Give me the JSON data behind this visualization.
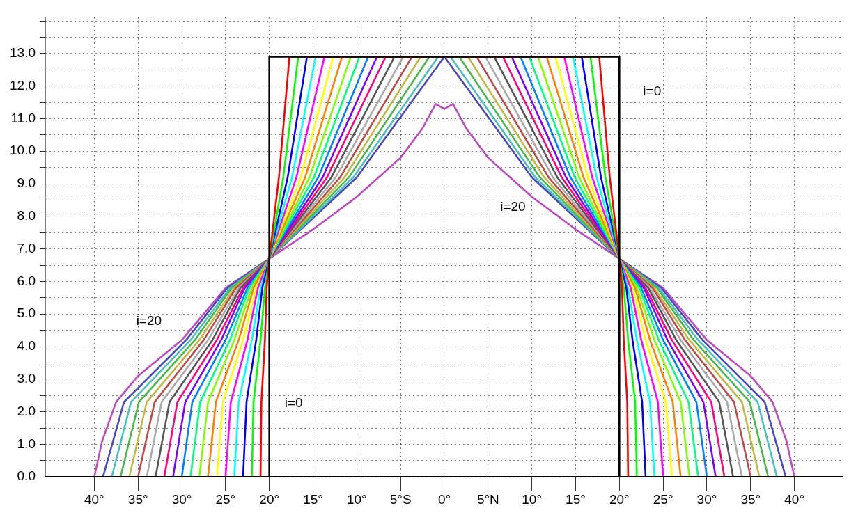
{
  "chart_data": {
    "type": "line",
    "xlim": [
      -45.6,
      45.6
    ],
    "ylim": [
      0,
      14.1
    ],
    "xticks": [
      {
        "value": -40,
        "label": "40°"
      },
      {
        "value": -35,
        "label": "35°"
      },
      {
        "value": -30,
        "label": "30°"
      },
      {
        "value": -25,
        "label": "25°"
      },
      {
        "value": -20,
        "label": "20°"
      },
      {
        "value": -15,
        "label": "15°"
      },
      {
        "value": -10,
        "label": "10°"
      },
      {
        "value": -5,
        "label": "5°S"
      },
      {
        "value": 0,
        "label": "0°"
      },
      {
        "value": 5,
        "label": "5°N"
      },
      {
        "value": 10,
        "label": "10°"
      },
      {
        "value": 15,
        "label": "15°"
      },
      {
        "value": 20,
        "label": "20°"
      },
      {
        "value": 25,
        "label": "25°"
      },
      {
        "value": 30,
        "label": "30°"
      },
      {
        "value": 35,
        "label": "35°"
      },
      {
        "value": 40,
        "label": "40°"
      }
    ],
    "yticks": [
      {
        "value": 0,
        "label": "0.0"
      },
      {
        "value": 0.5,
        "label": null
      },
      {
        "value": 1,
        "label": "1.0"
      },
      {
        "value": 1.5,
        "label": null
      },
      {
        "value": 2,
        "label": "2.0"
      },
      {
        "value": 2.5,
        "label": null
      },
      {
        "value": 3,
        "label": "3.0"
      },
      {
        "value": 3.5,
        "label": null
      },
      {
        "value": 4,
        "label": "4.0"
      },
      {
        "value": 4.5,
        "label": null
      },
      {
        "value": 5,
        "label": "5.0"
      },
      {
        "value": 5.5,
        "label": null
      },
      {
        "value": 6,
        "label": "6.0"
      },
      {
        "value": 6.5,
        "label": null
      },
      {
        "value": 7,
        "label": "7.0"
      },
      {
        "value": 7.5,
        "label": null
      },
      {
        "value": 8,
        "label": "8.0"
      },
      {
        "value": 8.5,
        "label": null
      },
      {
        "value": 9,
        "label": "9.0"
      },
      {
        "value": 9.5,
        "label": null
      },
      {
        "value": 10,
        "label": "10.0"
      },
      {
        "value": 10.5,
        "label": null
      },
      {
        "value": 11,
        "label": "11.0"
      },
      {
        "value": 11.5,
        "label": null
      },
      {
        "value": 12,
        "label": "12.0"
      },
      {
        "value": 12.5,
        "label": null
      },
      {
        "value": 13,
        "label": "13.0"
      },
      {
        "value": 13.5,
        "label": null
      },
      {
        "value": 14,
        "label": null
      }
    ],
    "grid": true,
    "legend": false,
    "marker": "none",
    "line_style": "solid",
    "annotations": [
      "i=0",
      "i=20",
      "i=20",
      "i=0"
    ],
    "series": [
      {
        "color": "#000000",
        "x": [
          -45.6,
          -20,
          -20,
          20,
          20,
          45.6
        ],
        "values": [
          0,
          0,
          12.9,
          12.9,
          0,
          0
        ]
      },
      {
        "color": "#ff0000",
        "x": [
          -45.6,
          -21,
          -20.9,
          -20.5,
          -20.3,
          -20,
          -18.9,
          -17.7,
          17.7,
          18.9,
          20,
          20.3,
          20.5,
          20.9,
          21,
          45.6
        ],
        "values": [
          0,
          0,
          2.3,
          4.2,
          5.8,
          6.7,
          9.2,
          12.9,
          12.9,
          9.2,
          6.7,
          5.8,
          4.2,
          2.3,
          0,
          0
        ]
      },
      {
        "color": "#00ff00",
        "x": [
          -45.6,
          -22,
          -21.8,
          -21,
          -20.5,
          -20,
          -18.4,
          -16.7,
          16.7,
          18.4,
          20,
          20.5,
          21,
          21.8,
          22,
          45.6
        ],
        "values": [
          0,
          0,
          2.3,
          4.2,
          5.8,
          6.7,
          9.2,
          12.9,
          12.9,
          9.2,
          6.7,
          5.8,
          4.2,
          2.3,
          0,
          0
        ]
      },
      {
        "color": "#0000ff",
        "x": [
          -45.6,
          -23,
          -22.6,
          -21.5,
          -20.8,
          -20,
          -17.9,
          -15.7,
          15.7,
          17.9,
          20,
          20.8,
          21.5,
          22.6,
          23,
          45.6
        ],
        "values": [
          0,
          0,
          2.3,
          4.2,
          5.8,
          6.7,
          9.2,
          12.9,
          12.9,
          9.2,
          6.7,
          5.8,
          4.2,
          2.3,
          0,
          0
        ]
      },
      {
        "color": "#00ffff",
        "x": [
          -45.6,
          -24,
          -23.5,
          -22,
          -21,
          -20,
          -17.4,
          -14.7,
          14.7,
          17.4,
          20,
          21,
          22,
          23.5,
          24,
          45.6
        ],
        "values": [
          0,
          0,
          2.3,
          4.2,
          5.8,
          6.7,
          9.2,
          12.9,
          12.9,
          9.2,
          6.7,
          5.8,
          4.2,
          2.3,
          0,
          0
        ]
      },
      {
        "color": "#ff00ff",
        "x": [
          -45.6,
          -25,
          -24.4,
          -22.5,
          -21.3,
          -20,
          -16.9,
          -13.7,
          13.7,
          16.9,
          20,
          21.3,
          22.5,
          24.4,
          25,
          45.6
        ],
        "values": [
          0,
          0,
          2.3,
          4.2,
          5.8,
          6.7,
          9.2,
          12.9,
          12.9,
          9.2,
          6.7,
          5.8,
          4.2,
          2.3,
          0,
          0
        ]
      },
      {
        "color": "#ffff00",
        "x": [
          -45.6,
          -26,
          -25.3,
          -23,
          -21.5,
          -20,
          -16.4,
          -12.7,
          12.7,
          16.4,
          20,
          21.5,
          23,
          25.3,
          26,
          45.6
        ],
        "values": [
          0,
          0,
          2.3,
          4.2,
          5.8,
          6.7,
          9.2,
          12.9,
          12.9,
          9.2,
          6.7,
          5.8,
          4.2,
          2.3,
          0,
          0
        ]
      },
      {
        "color": "#ff8000",
        "x": [
          -45.6,
          -27,
          -26.1,
          -23.5,
          -21.8,
          -20,
          -15.9,
          -11.7,
          11.7,
          15.9,
          20,
          21.8,
          23.5,
          26.1,
          27,
          45.6
        ],
        "values": [
          0,
          0,
          2.3,
          4.2,
          5.8,
          6.7,
          9.2,
          12.9,
          12.9,
          9.2,
          6.7,
          5.8,
          4.2,
          2.3,
          0,
          0
        ]
      },
      {
        "color": "#80ff00",
        "x": [
          -45.6,
          -28,
          -27,
          -24,
          -22,
          -20,
          -15.4,
          -10.7,
          10.7,
          15.4,
          20,
          22,
          24,
          27,
          28,
          45.6
        ],
        "values": [
          0,
          0,
          2.3,
          4.2,
          5.8,
          6.7,
          9.2,
          12.9,
          12.9,
          9.2,
          6.7,
          5.8,
          4.2,
          2.3,
          0,
          0
        ]
      },
      {
        "color": "#00ff80",
        "x": [
          -45.6,
          -29,
          -27.9,
          -24.5,
          -22.3,
          -20,
          -14.9,
          -9.7,
          9.7,
          14.9,
          20,
          22.3,
          24.5,
          27.9,
          29,
          45.6
        ],
        "values": [
          0,
          0,
          2.3,
          4.2,
          5.8,
          6.7,
          9.2,
          12.9,
          12.9,
          9.2,
          6.7,
          5.8,
          4.2,
          2.3,
          0,
          0
        ]
      },
      {
        "color": "#0080ff",
        "x": [
          -45.6,
          -30,
          -28.8,
          -25,
          -22.5,
          -20,
          -14.4,
          -8.7,
          8.7,
          14.4,
          20,
          22.5,
          25,
          28.8,
          30,
          45.6
        ],
        "values": [
          0,
          0,
          2.3,
          4.2,
          5.8,
          6.7,
          9.2,
          12.9,
          12.9,
          9.2,
          6.7,
          5.8,
          4.2,
          2.3,
          0,
          0
        ]
      },
      {
        "color": "#8000ff",
        "x": [
          -45.6,
          -31,
          -29.6,
          -25.5,
          -22.8,
          -20,
          -13.9,
          -7.7,
          7.7,
          13.9,
          20,
          22.8,
          25.5,
          29.6,
          31,
          45.6
        ],
        "values": [
          0,
          0,
          2.3,
          4.2,
          5.8,
          6.7,
          9.2,
          12.9,
          12.9,
          9.2,
          6.7,
          5.8,
          4.2,
          2.3,
          0,
          0
        ]
      },
      {
        "color": "#ff0080",
        "x": [
          -45.6,
          -32,
          -30.5,
          -26,
          -23,
          -20,
          -13.4,
          -6.7,
          6.7,
          13.4,
          20,
          23,
          26,
          30.5,
          32,
          45.6
        ],
        "values": [
          0,
          0,
          2.3,
          4.2,
          5.8,
          6.7,
          9.2,
          12.9,
          12.9,
          9.2,
          6.7,
          5.8,
          4.2,
          2.3,
          0,
          0
        ]
      },
      {
        "color": "#555555",
        "x": [
          -45.6,
          -33,
          -31.4,
          -26.5,
          -23.3,
          -20,
          -12.9,
          -5.7,
          5.7,
          12.9,
          20,
          23.3,
          26.5,
          31.4,
          33,
          45.6
        ],
        "values": [
          0,
          0,
          2.3,
          4.2,
          5.8,
          6.7,
          9.2,
          12.9,
          12.9,
          9.2,
          6.7,
          5.8,
          4.2,
          2.3,
          0,
          0
        ]
      },
      {
        "color": "#aaaaaa",
        "x": [
          -45.6,
          -34,
          -32.3,
          -27,
          -23.5,
          -20,
          -12.4,
          -4.7,
          4.7,
          12.4,
          20,
          23.5,
          27,
          32.3,
          34,
          45.6
        ],
        "values": [
          0,
          0,
          2.3,
          4.2,
          5.8,
          6.7,
          9.2,
          12.9,
          12.9,
          9.2,
          6.7,
          5.8,
          4.2,
          2.3,
          0,
          0
        ]
      },
      {
        "color": "#c04848",
        "x": [
          -45.6,
          -35,
          -33.1,
          -27.5,
          -23.8,
          -20,
          -11.9,
          -3.7,
          3.7,
          11.9,
          20,
          23.8,
          27.5,
          33.1,
          35,
          45.6
        ],
        "values": [
          0,
          0,
          2.3,
          4.2,
          5.8,
          6.7,
          9.2,
          12.9,
          12.9,
          9.2,
          6.7,
          5.8,
          4.2,
          2.3,
          0,
          0
        ]
      },
      {
        "color": "#c0b840",
        "x": [
          -45.6,
          -36,
          -34,
          -28,
          -24,
          -20,
          -11.4,
          -2.7,
          2.7,
          11.4,
          20,
          24,
          28,
          34,
          36,
          45.6
        ],
        "values": [
          0,
          0,
          2.3,
          4.2,
          5.8,
          6.7,
          9.2,
          12.9,
          12.9,
          9.2,
          6.7,
          5.8,
          4.2,
          2.3,
          0,
          0
        ]
      },
      {
        "color": "#48b848",
        "x": [
          -45.6,
          -37,
          -34.9,
          -28.5,
          -24.3,
          -20,
          -10.9,
          -1.7,
          1.7,
          10.9,
          20,
          24.3,
          28.5,
          34.9,
          37,
          45.6
        ],
        "values": [
          0,
          0,
          2.3,
          4.2,
          5.8,
          6.7,
          9.2,
          12.9,
          12.9,
          9.2,
          6.7,
          5.8,
          4.2,
          2.3,
          0,
          0
        ]
      },
      {
        "color": "#48c0c0",
        "x": [
          -45.6,
          -38,
          -35.8,
          -29,
          -24.5,
          -20,
          -10.4,
          -0.7,
          0.7,
          10.4,
          20,
          24.5,
          29,
          35.8,
          38,
          45.6
        ],
        "values": [
          0,
          0,
          2.3,
          4.2,
          5.8,
          6.7,
          9.2,
          12.9,
          12.9,
          9.2,
          6.7,
          5.8,
          4.2,
          2.3,
          0,
          0
        ]
      },
      {
        "color": "#4848c0",
        "x": [
          -45.6,
          -39,
          -36.6,
          -29.5,
          -24.8,
          -20,
          -10,
          0,
          10,
          20,
          24.8,
          29.5,
          36.6,
          39,
          45.6
        ],
        "values": [
          0,
          0,
          2.3,
          4.2,
          5.8,
          6.7,
          9.2,
          12.9,
          9.2,
          6.7,
          5.8,
          4.2,
          2.3,
          0,
          0
        ]
      },
      {
        "color": "#c048c0",
        "x": [
          -45.6,
          -40,
          -39.1,
          -37.5,
          -35,
          -30,
          -25,
          -20,
          -15,
          -10,
          -5,
          -2.5,
          -1,
          0,
          1,
          2.5,
          5,
          10,
          15,
          20,
          25,
          30,
          35,
          37.5,
          39.1,
          40,
          45.6
        ],
        "values": [
          0,
          0,
          1.1,
          2.3,
          3.1,
          4.2,
          5.8,
          6.7,
          7.6,
          8.6,
          9.8,
          10.7,
          11.45,
          11.3,
          11.45,
          10.7,
          9.8,
          8.6,
          7.6,
          6.7,
          5.8,
          4.2,
          3.1,
          2.3,
          1.1,
          0,
          0
        ]
      }
    ]
  }
}
